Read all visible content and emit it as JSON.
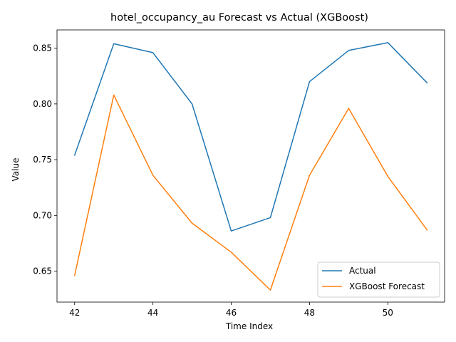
{
  "chart_data": {
    "type": "line",
    "title": "hotel_occupancy_au Forecast vs Actual (XGBoost)",
    "xlabel": "Time Index",
    "ylabel": "Value",
    "x": [
      42,
      43,
      44,
      45,
      46,
      47,
      48,
      49,
      50,
      51
    ],
    "xlim": [
      41.55,
      51.45
    ],
    "ylim": [
      0.6222,
      0.8664
    ],
    "xticks": [
      42,
      44,
      46,
      48,
      50
    ],
    "yticks": [
      0.65,
      0.7,
      0.75,
      0.8,
      0.85
    ],
    "ytick_labels": [
      "0.65",
      "0.70",
      "0.75",
      "0.80",
      "0.85"
    ],
    "series": [
      {
        "name": "Actual",
        "color": "#1f77b4",
        "values": [
          0.754,
          0.854,
          0.846,
          0.8,
          0.686,
          0.698,
          0.82,
          0.848,
          0.855,
          0.819
        ]
      },
      {
        "name": "XGBoost Forecast",
        "color": "#ff7f0e",
        "values": [
          0.646,
          0.808,
          0.736,
          0.693,
          0.667,
          0.633,
          0.736,
          0.796,
          0.735,
          0.687
        ]
      }
    ],
    "grid": false,
    "legend_position": "lower-right"
  }
}
